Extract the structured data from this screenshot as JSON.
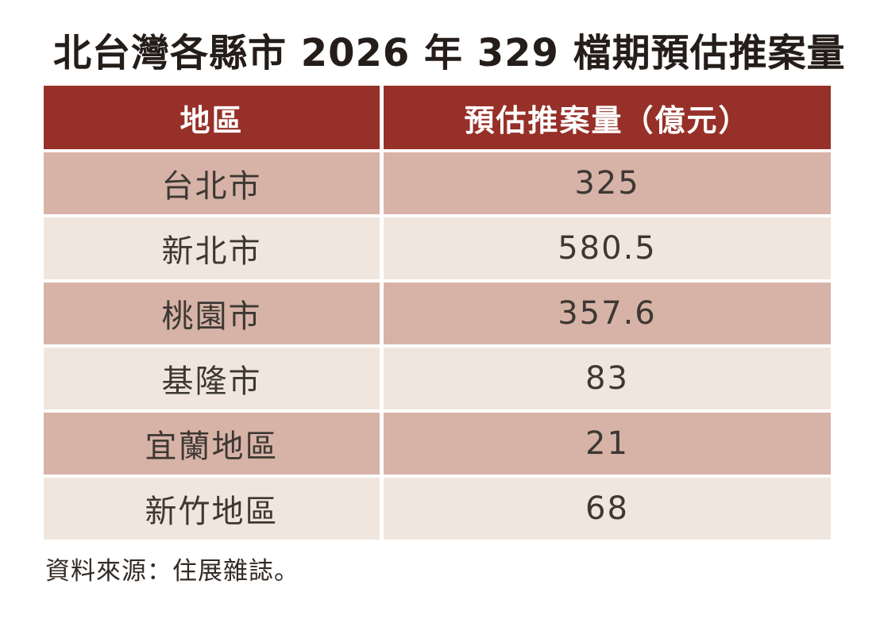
{
  "title": "北台灣各縣市 2026 年 329 檔期預估推案量",
  "table": {
    "headers": [
      "地區",
      "預估推案量（億元）"
    ],
    "rows": [
      {
        "region": "台北市",
        "value": "325"
      },
      {
        "region": "新北市",
        "value": "580.5"
      },
      {
        "region": "桃園市",
        "value": "357.6"
      },
      {
        "region": "基隆市",
        "value": "83"
      },
      {
        "region": "宜蘭地區",
        "value": "21"
      },
      {
        "region": "新竹地區",
        "value": "68"
      }
    ]
  },
  "source": "資料來源：住展雜誌。",
  "colors": {
    "header_bg": "#963028",
    "header_text": "#ffffff",
    "row_alt_bg": "#d7b3a7",
    "row_bg": "#f0e6de",
    "cell_text": "#3d3833",
    "title_text": "#241d1a",
    "source_text": "#332b25"
  },
  "chart_data": {
    "type": "table",
    "title": "北台灣各縣市 2026 年 329 檔期預估推案量",
    "columns": [
      "地區",
      "預估推案量（億元）"
    ],
    "rows": [
      [
        "台北市",
        325
      ],
      [
        "新北市",
        580.5
      ],
      [
        "桃園市",
        357.6
      ],
      [
        "基隆市",
        83
      ],
      [
        "宜蘭地區",
        21
      ],
      [
        "新竹地區",
        68
      ]
    ],
    "unit": "億元",
    "source": "資料來源：住展雜誌。"
  }
}
